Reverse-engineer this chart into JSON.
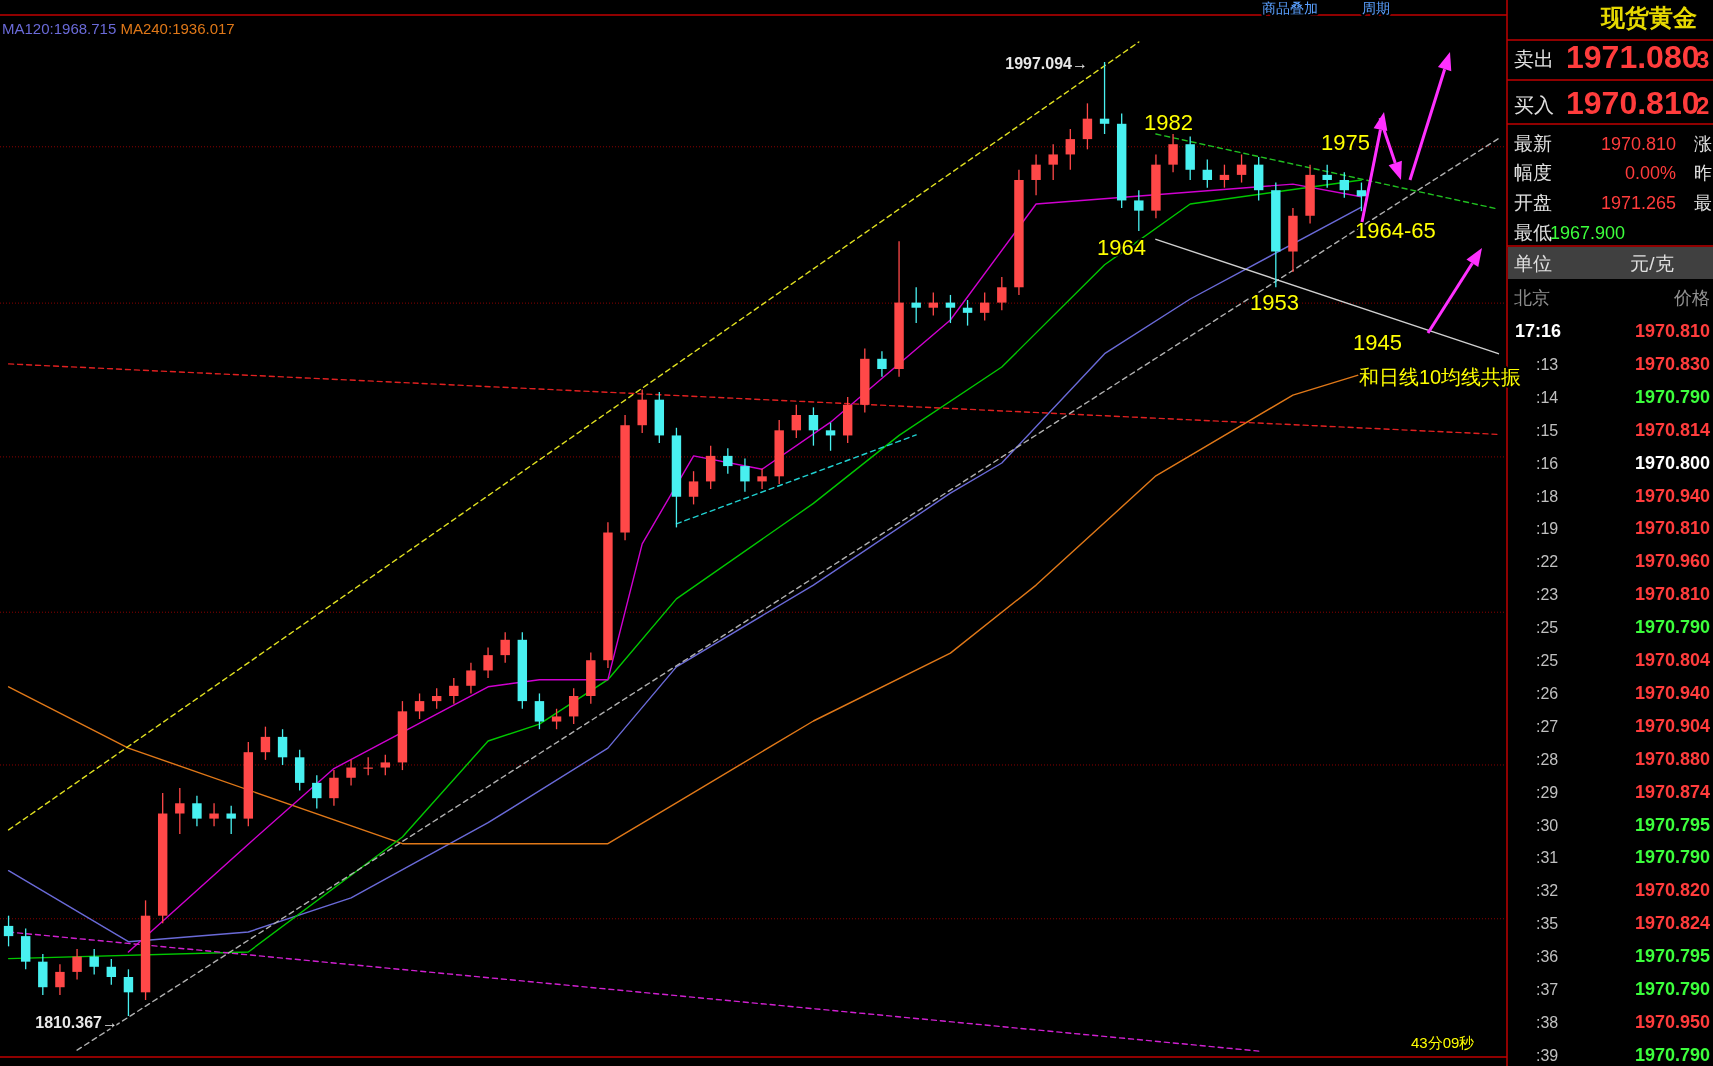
{
  "chart_data": [
    {
      "type": "candlestick",
      "grid": "y",
      "legend": "top left",
      "categories": [
        null,
        null,
        null,
        null,
        null,
        null,
        null,
        null,
        null,
        null,
        null,
        null,
        null,
        null,
        null,
        null,
        null,
        null,
        null,
        null,
        null,
        null,
        null,
        null,
        null,
        null,
        null,
        null,
        null,
        null,
        null,
        null,
        null,
        null,
        null,
        null,
        null,
        null,
        null,
        null,
        null,
        null,
        null,
        null,
        null,
        null,
        null,
        null,
        null,
        null,
        null,
        null,
        null,
        null,
        null,
        null,
        null,
        null,
        null,
        null,
        null,
        null,
        null,
        null,
        null,
        null,
        null,
        null,
        null,
        null,
        null,
        null,
        null,
        null,
        null,
        null,
        null,
        null,
        null,
        null,
        null,
        null,
        null,
        null,
        null,
        null,
        null,
        null
      ],
      "ohlc": [
        [
          1828,
          1830,
          1824,
          1826
        ],
        [
          1826,
          1827.5,
          1819.5,
          1821
        ],
        [
          1821,
          1822.5,
          1814.5,
          1816
        ],
        [
          1816,
          1820.5,
          1814.5,
          1819
        ],
        [
          1819,
          1823.5,
          1817.5,
          1822
        ],
        [
          1822,
          1823.5,
          1818.5,
          1820
        ],
        [
          1820,
          1821.5,
          1816.5,
          1818
        ],
        [
          1818,
          1819.5,
          1810.367,
          1815
        ],
        [
          1815,
          1833,
          1813.5,
          1830
        ],
        [
          1830,
          1854,
          1828.5,
          1850
        ],
        [
          1850,
          1855,
          1846,
          1852
        ],
        [
          1852,
          1853.5,
          1847.5,
          1849
        ],
        [
          1849,
          1852,
          1847.5,
          1850
        ],
        [
          1850,
          1851.5,
          1846,
          1849
        ],
        [
          1849,
          1864,
          1847.5,
          1862
        ],
        [
          1862,
          1867,
          1860.5,
          1865
        ],
        [
          1865,
          1866.5,
          1859.5,
          1861
        ],
        [
          1861,
          1862.5,
          1854.5,
          1856
        ],
        [
          1856,
          1857.5,
          1851,
          1853
        ],
        [
          1853,
          1858.5,
          1851.5,
          1857
        ],
        [
          1857,
          1860.5,
          1855.5,
          1859
        ],
        [
          1859,
          1861,
          1857.5,
          1859
        ],
        [
          1859,
          1861.5,
          1857.5,
          1860
        ],
        [
          1860,
          1872,
          1858.5,
          1870
        ],
        [
          1870,
          1873.5,
          1868.5,
          1872
        ],
        [
          1872,
          1874.5,
          1870.5,
          1873
        ],
        [
          1873,
          1876.5,
          1871.5,
          1875
        ],
        [
          1875,
          1879.5,
          1873.5,
          1878
        ],
        [
          1878,
          1882.5,
          1876.5,
          1881
        ],
        [
          1881,
          1885.5,
          1879.5,
          1884
        ],
        [
          1884,
          1885.5,
          1870.5,
          1872
        ],
        [
          1872,
          1873.5,
          1866.5,
          1868
        ],
        [
          1868,
          1870.5,
          1866.5,
          1869
        ],
        [
          1869,
          1874.5,
          1867.5,
          1873
        ],
        [
          1873,
          1881.5,
          1871.5,
          1880
        ],
        [
          1880,
          1907,
          1878.5,
          1905
        ],
        [
          1905,
          1928,
          1903.5,
          1926
        ],
        [
          1926,
          1933,
          1924.5,
          1931
        ],
        [
          1931,
          1932.5,
          1922.5,
          1924
        ],
        [
          1924,
          1925.5,
          1906,
          1912
        ],
        [
          1912,
          1917,
          1910.5,
          1915
        ],
        [
          1915,
          1922,
          1913.5,
          1920
        ],
        [
          1920,
          1921.5,
          1916.5,
          1918
        ],
        [
          1918,
          1919.5,
          1913,
          1915
        ],
        [
          1915,
          1917.5,
          1913.5,
          1916
        ],
        [
          1916,
          1927,
          1914.5,
          1925
        ],
        [
          1925,
          1930,
          1923.5,
          1928
        ],
        [
          1928,
          1929.5,
          1922,
          1925
        ],
        [
          1925,
          1926.5,
          1921,
          1924
        ],
        [
          1924,
          1931.5,
          1922.5,
          1930
        ],
        [
          1930,
          1941,
          1928.5,
          1939
        ],
        [
          1939,
          1940.5,
          1935.5,
          1937
        ],
        [
          1937,
          1962,
          1935.5,
          1950
        ],
        [
          1950,
          1953,
          1946,
          1949
        ],
        [
          1949,
          1952,
          1947.5,
          1950
        ],
        [
          1950,
          1951.5,
          1946,
          1949
        ],
        [
          1949,
          1950.5,
          1945.5,
          1948
        ],
        [
          1948,
          1952,
          1946.5,
          1950
        ],
        [
          1950,
          1955,
          1948.5,
          1953
        ],
        [
          1953,
          1976,
          1951.5,
          1974
        ],
        [
          1974,
          1979,
          1971,
          1977
        ],
        [
          1977,
          1981,
          1974,
          1979
        ],
        [
          1979,
          1984,
          1976,
          1982
        ],
        [
          1982,
          1989,
          1980,
          1986
        ],
        [
          1986,
          1997.094,
          1983,
          1985
        ],
        [
          1985,
          1987,
          1968.5,
          1970
        ],
        [
          1970,
          1972,
          1964,
          1968
        ],
        [
          1968,
          1979,
          1966.5,
          1977
        ],
        [
          1977,
          1983,
          1975.5,
          1981
        ],
        [
          1981,
          1982.5,
          1974,
          1976
        ],
        [
          1976,
          1978,
          1972.5,
          1974
        ],
        [
          1974,
          1977,
          1972.5,
          1975
        ],
        [
          1975,
          1979,
          1973.5,
          1977
        ],
        [
          1977,
          1978.5,
          1970,
          1972
        ],
        [
          1972,
          1973.5,
          1953,
          1960
        ],
        [
          1960,
          1968.5,
          1956,
          1967
        ],
        [
          1967,
          1977,
          1965.5,
          1975
        ],
        [
          1975,
          1977,
          1972.5,
          1974
        ],
        [
          1974,
          1975.5,
          1970.5,
          1972
        ],
        [
          1972,
          1973.5,
          1967.9,
          1970.81
        ],
        null,
        null,
        null,
        null,
        null,
        null,
        null,
        null
      ],
      "yticks": [
        {
          "value": 1980.5,
          "label": null
        },
        {
          "value": 1949.9,
          "label": null
        },
        {
          "value": 1919.8,
          "label": null
        },
        {
          "value": 1889.4,
          "label": null
        },
        {
          "value": 1859.5,
          "label": null
        },
        {
          "value": 1829.4,
          "label": null
        }
      ],
      "series": [
        {
          "type": "line",
          "name": "MA120:1968.715",
          "color": "#6a6ad8",
          "values": [
            1838.8,
            null,
            null,
            null,
            null,
            null,
            null,
            1824.9,
            null,
            null,
            null,
            null,
            null,
            null,
            1826.8,
            null,
            null,
            null,
            null,
            null,
            1833.5,
            null,
            null,
            null,
            null,
            null,
            null,
            null,
            1848.2,
            null,
            null,
            null,
            null,
            null,
            null,
            1862.8,
            null,
            null,
            null,
            1878.7,
            null,
            null,
            null,
            null,
            null,
            null,
            null,
            1894.7,
            null,
            null,
            null,
            null,
            null,
            null,
            null,
            1912.7,
            null,
            null,
            1918.6,
            null,
            null,
            null,
            null,
            null,
            1940,
            null,
            null,
            null,
            null,
            1950.7,
            null,
            null,
            null,
            null,
            null,
            null,
            null,
            null,
            null,
            1968.7,
            null,
            null,
            null,
            null,
            null,
            null,
            null,
            null
          ]
        },
        {
          "type": "line",
          "name": "MA240:1936.017",
          "color": "#e07818",
          "values": [
            1874.8,
            null,
            null,
            null,
            null,
            null,
            null,
            1862.8,
            null,
            null,
            null,
            null,
            null,
            null,
            null,
            null,
            null,
            null,
            null,
            null,
            null,
            null,
            null,
            1844.1,
            null,
            null,
            null,
            null,
            1844.1,
            null,
            null,
            null,
            null,
            null,
            null,
            1844.1,
            null,
            null,
            null,
            1852.1,
            null,
            null,
            null,
            null,
            null,
            null,
            null,
            1868.1,
            null,
            null,
            null,
            null,
            null,
            null,
            null,
            1881.4,
            null,
            null,
            null,
            null,
            1894.7,
            null,
            null,
            null,
            null,
            null,
            null,
            1916.1,
            null,
            null,
            null,
            null,
            null,
            null,
            null,
            1931.9,
            null,
            null,
            null,
            1936,
            null,
            null,
            null,
            null,
            null,
            null,
            null,
            null
          ]
        },
        {
          "type": "line",
          "color": "#00c800",
          "values": [
            1821.6,
            null,
            null,
            null,
            null,
            null,
            null,
            null,
            null,
            null,
            null,
            null,
            null,
            null,
            1822.9,
            null,
            null,
            null,
            null,
            null,
            null,
            null,
            null,
            1845.4,
            null,
            null,
            null,
            null,
            1864.2,
            null,
            null,
            1867.5,
            null,
            null,
            null,
            1876.2,
            null,
            null,
            null,
            1892,
            null,
            null,
            null,
            null,
            null,
            null,
            null,
            1910.7,
            null,
            null,
            null,
            null,
            1924,
            null,
            null,
            null,
            null,
            null,
            1937.4,
            null,
            null,
            null,
            null,
            null,
            1957.4,
            null,
            null,
            null,
            null,
            1969.3,
            null,
            null,
            null,
            null,
            null,
            null,
            null,
            null,
            null,
            1974,
            null,
            null,
            null,
            null,
            null,
            null,
            null,
            null
          ]
        },
        {
          "type": "line",
          "color": "#d000d0",
          "values": [
            null,
            null,
            null,
            null,
            null,
            null,
            null,
            1822.9,
            null,
            null,
            null,
            null,
            null,
            null,
            1844,
            null,
            null,
            null,
            null,
            1858.8,
            null,
            null,
            null,
            null,
            null,
            null,
            null,
            null,
            1874.8,
            null,
            null,
            1876.2,
            null,
            null,
            null,
            1876.2,
            null,
            1902.8,
            null,
            null,
            1920,
            null,
            null,
            null,
            1917.4,
            null,
            null,
            null,
            1926.6,
            null,
            null,
            null,
            null,
            null,
            null,
            1946.6,
            null,
            null,
            null,
            null,
            1969.3,
            null,
            null,
            null,
            null,
            null,
            null,
            null,
            null,
            null,
            null,
            null,
            null,
            null,
            null,
            1973.2,
            null,
            null,
            null,
            1970.7,
            null,
            null,
            null,
            null,
            null,
            null,
            null,
            null
          ]
        },
        {
          "type": "line",
          "line_style": "dashed",
          "color": "#e02020",
          "values": [
            1938,
            null,
            null,
            null,
            null,
            null,
            null,
            null,
            null,
            null,
            null,
            null,
            null,
            null,
            null,
            null,
            null,
            null,
            null,
            null,
            null,
            null,
            null,
            null,
            null,
            null,
            null,
            null,
            null,
            null,
            null,
            null,
            null,
            null,
            null,
            null,
            null,
            null,
            null,
            null,
            null,
            null,
            null,
            null,
            null,
            null,
            null,
            null,
            null,
            null,
            null,
            null,
            null,
            null,
            null,
            null,
            null,
            null,
            null,
            null,
            null,
            null,
            null,
            null,
            null,
            null,
            null,
            null,
            null,
            null,
            null,
            null,
            null,
            null,
            null,
            null,
            null,
            null,
            null,
            null,
            null,
            null,
            null,
            null,
            null,
            null,
            null,
            1924.2
          ]
        },
        {
          "type": "line",
          "line_style": "dashed",
          "color": "#d020d0",
          "values": [
            1826.8,
            null,
            null,
            null,
            null,
            null,
            null,
            null,
            null,
            null,
            null,
            null,
            null,
            null,
            null,
            null,
            null,
            null,
            null,
            null,
            null,
            null,
            null,
            null,
            null,
            null,
            null,
            null,
            null,
            null,
            null,
            null,
            null,
            null,
            null,
            null,
            null,
            null,
            null,
            null,
            null,
            null,
            null,
            null,
            null,
            null,
            null,
            null,
            null,
            null,
            null,
            null,
            null,
            null,
            null,
            null,
            null,
            null,
            null,
            null,
            null,
            null,
            null,
            null,
            null,
            null,
            null,
            null,
            null,
            null,
            null,
            null,
            null,
            1803.5,
            null,
            null,
            null,
            null,
            null,
            null,
            null,
            null,
            null,
            null,
            null,
            null,
            null,
            null
          ]
        },
        {
          "type": "line",
          "line_style": "dashed",
          "color": "#e0e020",
          "values": [
            1846.8,
            null,
            null,
            null,
            null,
            null,
            null,
            null,
            null,
            null,
            null,
            null,
            null,
            null,
            null,
            null,
            null,
            null,
            null,
            null,
            null,
            null,
            null,
            null,
            null,
            null,
            null,
            null,
            null,
            null,
            null,
            null,
            null,
            null,
            null,
            null,
            null,
            null,
            null,
            null,
            null,
            null,
            null,
            null,
            null,
            null,
            null,
            null,
            null,
            null,
            null,
            null,
            null,
            null,
            null,
            null,
            null,
            null,
            null,
            null,
            null,
            null,
            null,
            null,
            null,
            null,
            2001,
            null,
            null,
            null,
            null,
            null,
            null,
            null,
            null,
            null,
            null,
            null,
            null,
            null,
            null,
            null,
            null,
            null,
            null,
            null,
            null,
            null
          ]
        },
        {
          "type": "line",
          "line_style": "dashed",
          "color": "#b0b0b0",
          "values": [
            null,
            null,
            null,
            null,
            1803.7,
            null,
            null,
            null,
            null,
            null,
            null,
            null,
            null,
            null,
            null,
            null,
            null,
            null,
            null,
            null,
            null,
            null,
            null,
            null,
            null,
            null,
            null,
            null,
            null,
            null,
            null,
            null,
            null,
            null,
            null,
            null,
            null,
            null,
            null,
            null,
            null,
            null,
            null,
            null,
            null,
            null,
            null,
            null,
            null,
            null,
            null,
            null,
            null,
            null,
            null,
            null,
            null,
            null,
            null,
            null,
            null,
            null,
            null,
            null,
            null,
            null,
            null,
            null,
            null,
            null,
            null,
            null,
            null,
            null,
            null,
            null,
            null,
            null,
            null,
            null,
            null,
            null,
            null,
            null,
            null,
            null,
            null,
            1982.1
          ]
        },
        {
          "type": "line",
          "line_style": "dashed",
          "color": "#20c020",
          "values": [
            null,
            null,
            null,
            null,
            null,
            null,
            null,
            null,
            null,
            null,
            null,
            null,
            null,
            null,
            null,
            null,
            null,
            null,
            null,
            null,
            null,
            null,
            null,
            null,
            null,
            null,
            null,
            null,
            null,
            null,
            null,
            null,
            null,
            null,
            null,
            null,
            null,
            null,
            null,
            null,
            null,
            null,
            null,
            null,
            null,
            null,
            null,
            null,
            null,
            null,
            null,
            null,
            null,
            null,
            null,
            null,
            null,
            null,
            null,
            null,
            null,
            null,
            null,
            null,
            null,
            null,
            null,
            1983,
            null,
            null,
            null,
            null,
            null,
            null,
            null,
            null,
            null,
            null,
            null,
            null,
            null,
            null,
            null,
            null,
            null,
            null,
            null,
            1968.3
          ]
        },
        {
          "type": "line",
          "line_style": "dashed",
          "color": "#20d0d0",
          "values": [
            null,
            null,
            null,
            null,
            null,
            null,
            null,
            null,
            null,
            null,
            null,
            null,
            null,
            null,
            null,
            null,
            null,
            null,
            null,
            null,
            null,
            null,
            null,
            null,
            null,
            null,
            null,
            null,
            null,
            null,
            null,
            null,
            null,
            null,
            null,
            null,
            null,
            null,
            null,
            1906.7,
            null,
            null,
            null,
            null,
            null,
            null,
            null,
            null,
            null,
            null,
            null,
            null,
            null,
            1924.1,
            null,
            null,
            null,
            null,
            null,
            null,
            null,
            null,
            null,
            null,
            null,
            null,
            null,
            null,
            null,
            null,
            null,
            null,
            null,
            null,
            null,
            null,
            null,
            null,
            null,
            null,
            null,
            null,
            null,
            null,
            null,
            null,
            null,
            null
          ]
        },
        {
          "type": "line",
          "color": "#d0d0d0",
          "values": [
            null,
            null,
            null,
            null,
            null,
            null,
            null,
            null,
            null,
            null,
            null,
            null,
            null,
            null,
            null,
            null,
            null,
            null,
            null,
            null,
            null,
            null,
            null,
            null,
            null,
            null,
            null,
            null,
            null,
            null,
            null,
            null,
            null,
            null,
            null,
            null,
            null,
            null,
            null,
            null,
            null,
            null,
            null,
            null,
            null,
            null,
            null,
            null,
            null,
            null,
            null,
            null,
            null,
            null,
            null,
            null,
            null,
            null,
            null,
            null,
            null,
            null,
            null,
            null,
            null,
            null,
            null,
            1962.4,
            null,
            null,
            null,
            null,
            null,
            null,
            null,
            null,
            null,
            null,
            null,
            null,
            null,
            null,
            null,
            null,
            null,
            null,
            null,
            1940
          ]
        }
      ],
      "annotations": [
        "1982",
        "1975",
        "1964",
        "1964-65",
        "1953",
        "1945",
        "和日线10均线共振",
        "1997.094→",
        "1810.367→",
        "43分09秒",
        "商品叠加",
        "周期"
      ]
    },
    {
      "type": "other",
      "annotations": [
        "现货黄金",
        "卖出",
        "1971.080",
        "3",
        "买入",
        "1970.810",
        "2",
        "最新",
        "1970.810",
        "涨",
        "幅度",
        "0.00%",
        "昨",
        "开盘",
        "1971.265",
        "最",
        "最低",
        "1967.900",
        "单位",
        "元/克",
        "北京",
        "价格"
      ],
      "categories": [
        "17:16",
        ":13",
        ":14",
        ":15",
        ":16",
        ":18",
        ":19",
        ":22",
        ":23",
        ":25",
        ":25",
        ":26",
        ":27",
        ":28",
        ":29",
        ":30",
        ":31",
        ":32",
        ":35",
        ":36",
        ":37",
        ":38",
        ":39"
      ],
      "value_labels": [
        "1970.810",
        "1970.830",
        "1970.790",
        "1970.814",
        "1970.800",
        "1970.940",
        "1970.810",
        "1970.960",
        "1970.810",
        "1970.790",
        "1970.804",
        "1970.940",
        "1970.904",
        "1970.880",
        "1970.874",
        "1970.795",
        "1970.790",
        "1970.820",
        "1970.824",
        "1970.795",
        "1970.790",
        "1970.950",
        "1970.790"
      ],
      "colors": [
        "#ff3c3c",
        "#ff3c3c",
        "#3cff3c",
        "#ff3c3c",
        "#ffffff",
        "#ff3c3c",
        "#ff3c3c",
        "#ff3c3c",
        "#ff3c3c",
        "#3cff3c",
        "#ff3c3c",
        "#ff3c3c",
        "#ff3c3c",
        "#ff3c3c",
        "#ff3c3c",
        "#3cff3c",
        "#3cff3c",
        "#ff3c3c",
        "#ff3c3c",
        "#3cff3c",
        "#3cff3c",
        "#ff3c3c",
        "#3cff3c"
      ]
    }
  ]
}
